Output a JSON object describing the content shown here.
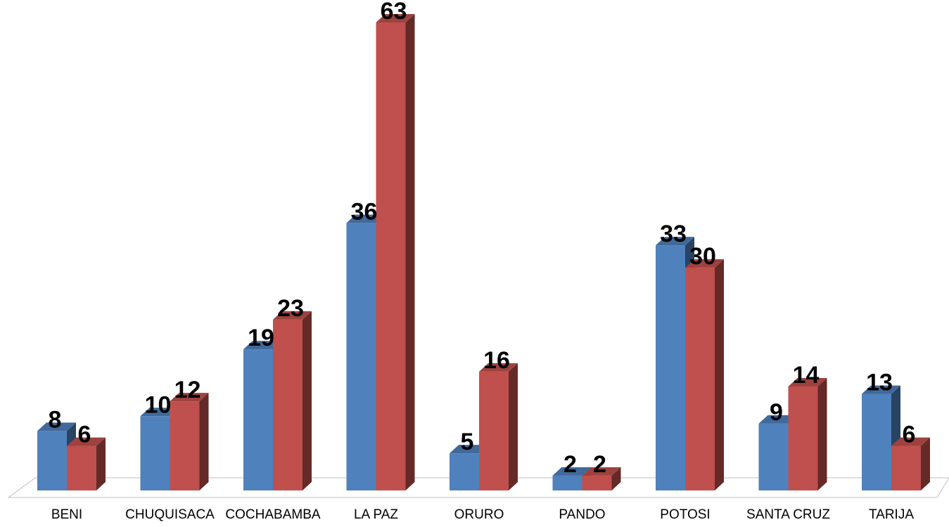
{
  "chart_data": {
    "type": "bar",
    "style": "3d-clustered-column",
    "categories": [
      "BENI",
      "CHUQUISACA",
      "COCHABAMBA",
      "LA PAZ",
      "ORURO",
      "PANDO",
      "POTOSI",
      "SANTA CRUZ",
      "TARIJA"
    ],
    "series": [
      {
        "values": [
          8,
          10,
          19,
          36,
          5,
          2,
          33,
          9,
          13
        ],
        "color": "#4F81BD"
      },
      {
        "values": [
          6,
          12,
          23,
          63,
          16,
          2,
          30,
          14,
          6
        ],
        "color": "#C0504D"
      }
    ],
    "ylim": [
      0,
      63
    ],
    "grid": false,
    "legend": "none",
    "data_labels": true
  }
}
